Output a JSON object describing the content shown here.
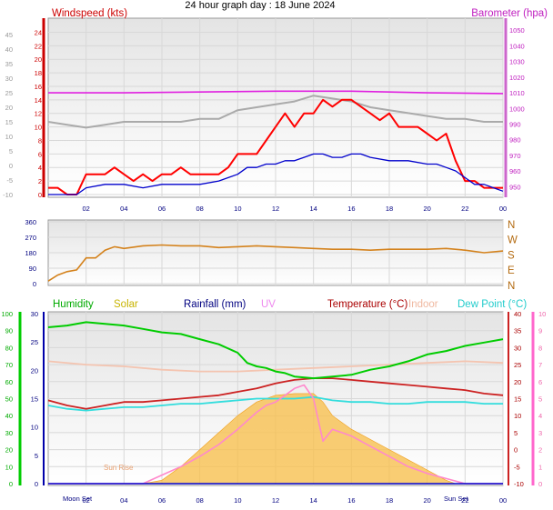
{
  "chart_data": {
    "type": "line",
    "title": "24 hour graph day : 18 June 2024",
    "x_ticks": [
      "02",
      "04",
      "06",
      "08",
      "10",
      "12",
      "14",
      "16",
      "18",
      "20",
      "22",
      "00"
    ],
    "x_range_hours": [
      0,
      24
    ],
    "panels": [
      {
        "name": "wind-baro",
        "left_axis_label": "Windspeed (kts)",
        "right_axis_label": "Barometer (hpa)",
        "left_ticks": [
          "0",
          "2",
          "4",
          "6",
          "8",
          "10",
          "12",
          "14",
          "16",
          "18",
          "20",
          "22",
          "24"
        ],
        "outer_left_ticks": [
          "-10",
          "-5",
          "0",
          "5",
          "10",
          "15",
          "20",
          "25",
          "30",
          "35",
          "40",
          "45"
        ],
        "right_ticks": [
          "950",
          "960",
          "970",
          "980",
          "990",
          "1000",
          "1010",
          "1020",
          "1030",
          "1040",
          "1050"
        ],
        "left_range": [
          0,
          25
        ],
        "right_range": [
          945,
          1053
        ],
        "series": [
          {
            "name": "Windspeed",
            "axis": "left",
            "color": "#ff0000",
            "x": [
              0,
              0.5,
              1,
              1.5,
              2,
              2.5,
              3,
              3.5,
              4,
              4.5,
              5,
              5.5,
              6,
              6.5,
              7,
              7.5,
              8,
              8.5,
              9,
              9.5,
              10,
              10.5,
              11,
              11.5,
              12,
              12.5,
              13,
              13.5,
              14,
              14.5,
              15,
              15.5,
              16,
              16.5,
              17,
              17.5,
              18,
              18.5,
              19,
              19.5,
              20,
              20.5,
              21,
              21.5,
              22,
              22.5,
              23,
              23.5,
              24
            ],
            "values": [
              1,
              1,
              0,
              0,
              3,
              3,
              3,
              4,
              3,
              2,
              3,
              2,
              3,
              3,
              4,
              3,
              3,
              3,
              3,
              4,
              6,
              6,
              6,
              8,
              10,
              12,
              10,
              12,
              12,
              14,
              13,
              14,
              14,
              13,
              12,
              11,
              12,
              10,
              10,
              10,
              9,
              8,
              9,
              5,
              2,
              2,
              1,
              1,
              1
            ]
          },
          {
            "name": "Windspeed (average)",
            "axis": "left",
            "color": "#0000cc",
            "x": [
              0,
              1,
              1.5,
              2,
              3,
              4,
              5,
              6,
              7,
              8,
              9,
              10,
              10.5,
              11,
              11.5,
              12,
              12.5,
              13,
              13.5,
              14,
              14.5,
              15,
              15.5,
              16,
              16.5,
              17,
              18,
              19,
              20,
              20.5,
              21,
              21.5,
              22,
              22.5,
              23,
              23.5,
              24
            ],
            "values": [
              0,
              0,
              0,
              1,
              1.5,
              1.5,
              1,
              1.5,
              1.5,
              1.5,
              2,
              3,
              4,
              4,
              4.5,
              4.5,
              5,
              5,
              5.5,
              6,
              6,
              5.5,
              5.5,
              6,
              6,
              5.5,
              5,
              5,
              4.5,
              4.5,
              4,
              3.5,
              2.5,
              1.5,
              1.5,
              1,
              0.5
            ]
          },
          {
            "name": "Wind gust (grey)",
            "axis": "outer_left",
            "color": "#aaaaaa",
            "x": [
              0,
              1,
              2,
              3,
              4,
              5,
              6,
              7,
              8,
              9,
              10,
              11,
              12,
              13,
              14,
              15,
              16,
              17,
              18,
              19,
              20,
              21,
              22,
              23,
              24
            ],
            "values": [
              15,
              14,
              13,
              14,
              15,
              15,
              15,
              15,
              16,
              16,
              19,
              20,
              21,
              22,
              24,
              23,
              22,
              20,
              19,
              18,
              17,
              16,
              16,
              15,
              15
            ]
          },
          {
            "name": "Barometer",
            "axis": "right",
            "color": "#e020e0",
            "x": [
              0,
              4,
              8,
              12,
              16,
              20,
              24
            ],
            "values": [
              1010,
              1010,
              1010.5,
              1011,
              1011,
              1010,
              1009.5
            ]
          }
        ]
      },
      {
        "name": "wind-direction",
        "left_ticks": [
          "0",
          "90",
          "180",
          "270",
          "360"
        ],
        "right_ticks": [
          "N",
          "E",
          "S",
          "W",
          "N"
        ],
        "left_range": [
          0,
          360
        ],
        "series": [
          {
            "name": "Wind direction",
            "color": "#d4821c",
            "x": [
              0,
              0.5,
              1,
              1.5,
              2,
              2.5,
              3,
              3.5,
              4,
              5,
              6,
              7,
              8,
              9,
              10,
              11,
              12,
              13,
              14,
              15,
              16,
              17,
              18,
              19,
              20,
              21,
              22,
              23,
              24
            ],
            "values": [
              15,
              50,
              70,
              80,
              150,
              150,
              195,
              215,
              205,
              220,
              225,
              220,
              220,
              210,
              215,
              220,
              215,
              210,
              205,
              200,
              200,
              195,
              200,
              200,
              200,
              205,
              195,
              180,
              190
            ]
          }
        ]
      },
      {
        "name": "temp-humidity-solar",
        "headers": [
          "Humidity",
          "Solar",
          "Rainfall (mm)",
          "UV",
          "Temperature (°C)",
          "Indoor",
          "Dew Point (°C)"
        ],
        "humidity_ticks": [
          "0",
          "10",
          "20",
          "30",
          "40",
          "50",
          "60",
          "70",
          "80",
          "90",
          "100"
        ],
        "rain_ticks": [
          "0",
          "5",
          "10",
          "15",
          "20",
          "25",
          "30"
        ],
        "temp_ticks": [
          "-10",
          "-5",
          "0",
          "5",
          "10",
          "15",
          "20",
          "25",
          "30",
          "35",
          "40"
        ],
        "uv_ticks": [
          "0",
          "1",
          "2",
          "3",
          "4",
          "5",
          "6",
          "7",
          "8",
          "9",
          "10"
        ],
        "humidity_range": [
          0,
          100
        ],
        "temp_range": [
          -10,
          40
        ],
        "annotations": [
          "Sun Rise",
          "Moon Set",
          "Sun Set"
        ],
        "series": [
          {
            "name": "Humidity",
            "axis": "humidity",
            "color": "#00cc00",
            "x": [
              0,
              1,
              2,
              3,
              4,
              5,
              6,
              7,
              8,
              9,
              10,
              10.5,
              11,
              11.5,
              12,
              12.5,
              13,
              14,
              15,
              16,
              17,
              18,
              19,
              20,
              21,
              22,
              23,
              24
            ],
            "values": [
              92,
              93,
              95,
              94,
              93,
              91,
              89,
              88,
              85,
              82,
              77,
              71,
              69,
              68,
              66,
              65,
              63,
              62,
              63,
              64,
              67,
              69,
              72,
              76,
              78,
              81,
              83,
              85
            ]
          },
          {
            "name": "Indoor",
            "axis": "temp",
            "color": "#f4c4b0",
            "x": [
              0,
              2,
              4,
              6,
              8,
              10,
              12,
              14,
              16,
              18,
              20,
              22,
              24
            ],
            "values": [
              26,
              25,
              24.5,
              23.5,
              23,
              23,
              23.5,
              24,
              24.5,
              25,
              25.5,
              26,
              25.5
            ]
          },
          {
            "name": "Temperature",
            "axis": "temp",
            "color": "#cc2222",
            "x": [
              0,
              1,
              2,
              3,
              4,
              5,
              6,
              7,
              8,
              9,
              10,
              11,
              12,
              12.5,
              13,
              14,
              15,
              16,
              17,
              18,
              19,
              20,
              21,
              22,
              23,
              24
            ],
            "values": [
              14.5,
              13,
              12,
              13,
              14,
              14,
              14.5,
              15,
              15.5,
              16,
              17,
              18,
              19.5,
              20,
              20.5,
              21,
              21,
              20.5,
              20,
              19.5,
              19,
              18.5,
              18,
              17.5,
              16.5,
              16
            ]
          },
          {
            "name": "Dew Point",
            "axis": "temp",
            "color": "#33dddd",
            "x": [
              0,
              1,
              2,
              3,
              4,
              5,
              6,
              7,
              8,
              9,
              10,
              11,
              12,
              13,
              14,
              15,
              16,
              17,
              18,
              19,
              20,
              21,
              22,
              23,
              24
            ],
            "values": [
              13,
              12,
              11.5,
              12,
              12.5,
              12.5,
              13,
              13.5,
              13.5,
              14,
              14.5,
              15,
              15,
              15,
              15.5,
              14.5,
              14,
              14,
              13.5,
              13.5,
              14,
              14,
              14,
              13.5,
              13.5
            ]
          },
          {
            "name": "UV",
            "axis": "uv",
            "color": "#ff88cc",
            "x": [
              0,
              5,
              6,
              7,
              8,
              9,
              10,
              11,
              11.5,
              12,
              12.5,
              13,
              13.5,
              14,
              14.5,
              15,
              15.5,
              16,
              17,
              18,
              19,
              20,
              21,
              22,
              24
            ],
            "values": [
              0,
              0,
              0.5,
              1,
              1.6,
              2.3,
              3.2,
              4.2,
              4.6,
              4.8,
              5.2,
              5.6,
              5.8,
              5,
              2.5,
              3.2,
              3,
              2.8,
              2.2,
              1.6,
              1,
              0.6,
              0.3,
              0,
              0
            ]
          },
          {
            "name": "Solar",
            "axis": "temp",
            "color": "#f8c050",
            "x": [
              0,
              5,
              6,
              7,
              8,
              9,
              10,
              11,
              12,
              13,
              14,
              14.5,
              15,
              16,
              17,
              18,
              19,
              20,
              21,
              21.5,
              24
            ],
            "values": [
              -10,
              -10,
              -9,
              -5,
              0,
              5,
              10,
              14,
              16,
              16.5,
              16.5,
              14,
              10,
              6,
              3,
              0,
              -3,
              -6,
              -9,
              -10,
              -10
            ]
          }
        ]
      }
    ]
  }
}
